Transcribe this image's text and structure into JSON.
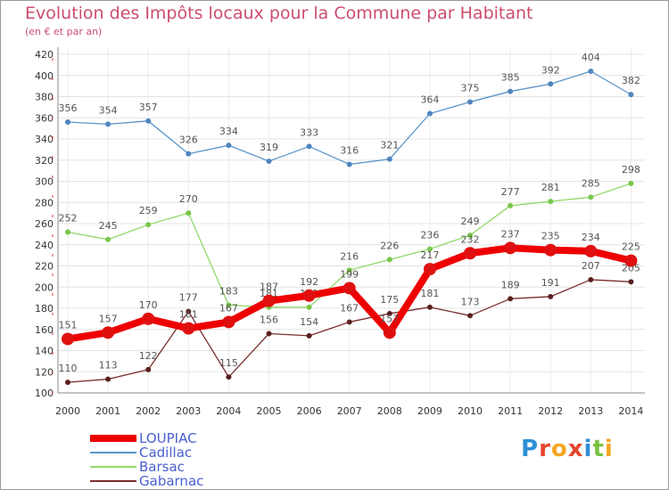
{
  "chart_data": {
    "type": "line",
    "title": "Evolution des Impôts locaux pour la Commune par Habitant",
    "subtitle": "(en € et par an)",
    "xlabel": "",
    "ylabel": "",
    "ylim": [
      100,
      420
    ],
    "ytick_step": 20,
    "grid": true,
    "x": [
      "2000",
      "2001",
      "2002",
      "2003",
      "2004",
      "2005",
      "2006",
      "2007",
      "2008",
      "2009",
      "2010",
      "2011",
      "2012",
      "2013",
      "2014"
    ],
    "series": [
      {
        "name": "Cadillac",
        "color": "#5a95c9",
        "dot": "#4f85c0",
        "values": [
          356,
          354,
          357,
          326,
          334,
          319,
          333,
          316,
          321,
          364,
          375,
          385,
          392,
          404,
          382
        ]
      },
      {
        "name": "Barsac",
        "color": "#93d86a",
        "dot": "#77c64a",
        "values": [
          252,
          245,
          259,
          270,
          183,
          181,
          181,
          216,
          226,
          236,
          249,
          277,
          281,
          285,
          298
        ]
      },
      {
        "name": "Gabarnac",
        "color": "#7a2e2e",
        "dot": "#5a1f1f",
        "values": [
          110,
          113,
          122,
          177,
          115,
          156,
          154,
          167,
          175,
          181,
          173,
          189,
          191,
          207,
          205
        ]
      },
      {
        "name": "LOUPIAC",
        "color": "#ee0000",
        "dot": "#e01010",
        "values": [
          151,
          157,
          170,
          161,
          167,
          187,
          192,
          199,
          157,
          217,
          232,
          237,
          235,
          234,
          225
        ]
      }
    ],
    "legend": [
      {
        "name": "LOUPIAC",
        "color": "#ee0000"
      },
      {
        "name": "Cadillac",
        "color": "#5a95c9"
      },
      {
        "name": "Barsac",
        "color": "#93d86a"
      },
      {
        "name": "Gabarnac",
        "color": "#7a2e2e"
      }
    ],
    "legend_text_color": "#4a5fd0"
  },
  "brand": {
    "text": "Proxiti"
  }
}
